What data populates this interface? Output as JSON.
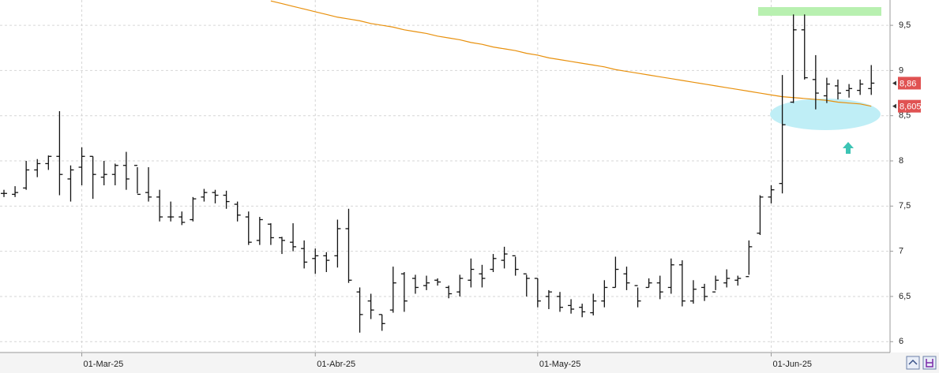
{
  "chart_data": {
    "type": "ohlc",
    "categories": [
      null,
      null,
      null,
      null,
      null,
      null,
      null,
      "01-Mar-25",
      null,
      null,
      null,
      null,
      null,
      null,
      null,
      null,
      null,
      null,
      null,
      null,
      null,
      null,
      null,
      null,
      null,
      null,
      null,
      null,
      "01-Abr-25",
      null,
      null,
      null,
      null,
      null,
      null,
      null,
      null,
      null,
      null,
      null,
      null,
      null,
      null,
      null,
      null,
      null,
      null,
      null,
      "01-May-25",
      null,
      null,
      null,
      null,
      null,
      null,
      null,
      null,
      null,
      null,
      null,
      null,
      null,
      null,
      null,
      null,
      null,
      null,
      null,
      null,
      "01-Jun-25",
      null,
      null,
      null,
      null,
      null,
      null,
      null,
      null,
      null
    ],
    "open": [
      7.64,
      7.63,
      7.7,
      7.9,
      7.97,
      8.05,
      7.8,
      7.93,
      8.05,
      7.82,
      7.85,
      7.95,
      7.95,
      7.65,
      7.6,
      7.38,
      7.38,
      7.35,
      7.6,
      7.65,
      7.62,
      7.52,
      7.38,
      7.12,
      7.3,
      7.15,
      7.1,
      7.03,
      6.92,
      6.95,
      6.95,
      7.25,
      6.55,
      6.45,
      6.3,
      6.35,
      6.75,
      6.7,
      6.62,
      6.68,
      6.6,
      6.55,
      6.68,
      6.75,
      6.8,
      6.9,
      6.95,
      6.75,
      6.7,
      6.5,
      6.5,
      6.4,
      6.38,
      6.32,
      6.45,
      6.6,
      6.75,
      6.62,
      6.6,
      6.65,
      6.6,
      6.85,
      6.45,
      6.6,
      6.55,
      6.65,
      6.68,
      6.72,
      7.2,
      7.6,
      7.75,
      8.65,
      9.45,
      8.9,
      8.72,
      8.83,
      8.78,
      8.78,
      8.8
    ],
    "high": [
      7.68,
      7.72,
      8.0,
      8.02,
      8.06,
      8.55,
      7.95,
      8.15,
      8.05,
      8.0,
      7.97,
      8.1,
      7.93,
      7.93,
      7.68,
      7.55,
      7.44,
      7.6,
      7.69,
      7.68,
      7.67,
      7.55,
      7.44,
      7.38,
      7.31,
      7.16,
      7.31,
      7.12,
      7.03,
      6.99,
      7.35,
      7.47,
      6.6,
      6.53,
      6.3,
      6.83,
      6.77,
      6.74,
      6.73,
      6.7,
      6.62,
      6.74,
      6.92,
      6.85,
      6.97,
      7.05,
      6.94,
      6.74,
      6.7,
      6.57,
      6.55,
      6.47,
      6.42,
      6.53,
      6.68,
      6.94,
      6.83,
      6.6,
      6.7,
      6.73,
      6.92,
      6.9,
      6.68,
      6.64,
      6.73,
      6.8,
      6.73,
      7.12,
      7.62,
      7.73,
      8.95,
      9.62,
      9.62,
      9.17,
      8.92,
      8.9,
      8.85,
      8.9,
      9.06
    ],
    "low": [
      7.6,
      7.6,
      7.68,
      7.82,
      7.9,
      7.62,
      7.55,
      7.73,
      7.58,
      7.73,
      7.73,
      7.68,
      7.64,
      7.55,
      7.33,
      7.33,
      7.29,
      7.33,
      7.55,
      7.53,
      7.47,
      7.33,
      7.07,
      7.07,
      7.07,
      6.97,
      7.0,
      6.81,
      6.75,
      6.77,
      6.82,
      6.65,
      6.1,
      6.25,
      6.12,
      6.32,
      6.33,
      6.53,
      6.57,
      6.62,
      6.48,
      6.5,
      6.6,
      6.6,
      6.77,
      6.81,
      6.73,
      6.5,
      6.38,
      6.36,
      6.33,
      6.31,
      6.27,
      6.29,
      6.38,
      6.6,
      6.57,
      6.38,
      6.6,
      6.47,
      6.53,
      6.39,
      6.42,
      6.45,
      6.57,
      6.6,
      6.62,
      6.74,
      7.18,
      7.53,
      7.64,
      8.64,
      8.9,
      8.57,
      8.64,
      8.68,
      8.7,
      8.73,
      8.73
    ],
    "close": [
      7.64,
      7.65,
      7.9,
      7.97,
      8.05,
      7.85,
      7.9,
      8.05,
      7.85,
      7.85,
      7.95,
      7.8,
      7.63,
      7.6,
      7.38,
      7.38,
      7.32,
      7.58,
      7.65,
      7.62,
      7.55,
      7.4,
      7.1,
      7.35,
      7.15,
      7.12,
      7.05,
      6.88,
      6.95,
      6.9,
      7.25,
      6.68,
      6.3,
      6.35,
      6.2,
      6.65,
      6.45,
      6.6,
      6.65,
      6.66,
      6.53,
      6.7,
      6.8,
      6.7,
      6.92,
      6.97,
      6.8,
      6.7,
      6.45,
      6.55,
      6.38,
      6.36,
      6.33,
      6.45,
      6.6,
      6.8,
      6.65,
      6.45,
      6.65,
      6.55,
      6.85,
      6.45,
      6.58,
      6.5,
      6.68,
      6.7,
      6.7,
      7.05,
      7.6,
      7.68,
      8.4,
      9.45,
      8.92,
      8.75,
      8.85,
      8.75,
      8.8,
      8.85,
      8.86
    ],
    "color": "#111111",
    "moving_average": {
      "color": "#e8900c",
      "values": [
        null,
        null,
        null,
        null,
        null,
        null,
        null,
        null,
        null,
        null,
        null,
        null,
        null,
        null,
        null,
        null,
        null,
        null,
        null,
        null,
        null,
        null,
        null,
        null,
        9.77,
        9.74,
        9.71,
        9.68,
        9.65,
        9.62,
        9.59,
        9.57,
        9.55,
        9.52,
        9.5,
        9.48,
        9.45,
        9.43,
        9.41,
        9.38,
        9.36,
        9.34,
        9.31,
        9.29,
        9.26,
        9.24,
        9.22,
        9.19,
        9.17,
        9.14,
        9.12,
        9.1,
        9.08,
        9.06,
        9.04,
        9.01,
        8.99,
        8.97,
        8.95,
        8.93,
        8.91,
        8.89,
        8.87,
        8.85,
        8.83,
        8.81,
        8.79,
        8.77,
        8.75,
        8.73,
        8.71,
        8.7,
        8.69,
        8.68,
        8.67,
        8.65,
        8.64,
        8.63,
        8.605
      ]
    },
    "price_tags": [
      {
        "value": 8.86,
        "label": "8,86"
      },
      {
        "value": 8.605,
        "label": "8,605"
      }
    ],
    "price_tag_color": "#e05252",
    "ylim": [
      5.88,
      9.78
    ],
    "yticks": [
      6,
      {
        "value": 6.5,
        "label": "6,5"
      },
      7,
      {
        "value": 7.5,
        "label": "7,5"
      },
      8,
      {
        "value": 8.5,
        "label": "8,5"
      },
      9,
      {
        "value": 9.5,
        "label": "9,5"
      }
    ],
    "grid": true
  }
}
